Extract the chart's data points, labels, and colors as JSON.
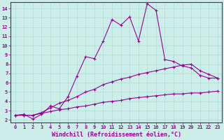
{
  "xlabel": "Windchill (Refroidissement éolien,°C)",
  "ylabel": "",
  "background_color": "#cceee8",
  "grid_color": "#aaddcc",
  "line_color": "#990099",
  "xlim": [
    -0.5,
    23.5
  ],
  "ylim": [
    1.7,
    14.7
  ],
  "xticks": [
    0,
    1,
    2,
    3,
    4,
    5,
    6,
    7,
    8,
    9,
    10,
    11,
    12,
    13,
    14,
    15,
    16,
    17,
    18,
    19,
    20,
    21,
    22,
    23
  ],
  "yticks": [
    2,
    3,
    4,
    5,
    6,
    7,
    8,
    9,
    10,
    11,
    12,
    13,
    14
  ],
  "line1_x": [
    0,
    1,
    2,
    3,
    4,
    5,
    6,
    7,
    8,
    9,
    10,
    11,
    12,
    13,
    14,
    15,
    16,
    17,
    18,
    19,
    20,
    21,
    22,
    23
  ],
  "line1_y": [
    2.5,
    2.6,
    2.1,
    2.6,
    3.5,
    3.2,
    4.5,
    6.7,
    8.8,
    8.6,
    10.5,
    12.8,
    12.2,
    13.1,
    10.5,
    14.5,
    13.8,
    8.5,
    8.3,
    7.8,
    7.6,
    6.8,
    6.5,
    6.5
  ],
  "line2_x": [
    0,
    1,
    2,
    3,
    4,
    5,
    6,
    7,
    8,
    9,
    10,
    11,
    12,
    13,
    14,
    15,
    16,
    17,
    18,
    19,
    20,
    21,
    22,
    23
  ],
  "line2_y": [
    2.5,
    2.5,
    2.5,
    2.8,
    3.3,
    3.8,
    4.1,
    4.5,
    5.0,
    5.3,
    5.8,
    6.1,
    6.4,
    6.6,
    6.9,
    7.1,
    7.3,
    7.5,
    7.7,
    7.9,
    8.0,
    7.3,
    6.9,
    6.5
  ],
  "line3_x": [
    0,
    1,
    2,
    3,
    4,
    5,
    6,
    7,
    8,
    9,
    10,
    11,
    12,
    13,
    14,
    15,
    16,
    17,
    18,
    19,
    20,
    21,
    22,
    23
  ],
  "line3_y": [
    2.5,
    2.5,
    2.5,
    2.7,
    2.9,
    3.1,
    3.2,
    3.4,
    3.5,
    3.7,
    3.9,
    4.0,
    4.1,
    4.3,
    4.4,
    4.5,
    4.6,
    4.7,
    4.8,
    4.8,
    4.9,
    4.9,
    5.0,
    5.1
  ],
  "marker": "+",
  "markersize": 3,
  "linewidth": 0.8,
  "tick_fontsize": 5,
  "xlabel_fontsize": 6,
  "title_fontsize": 6
}
